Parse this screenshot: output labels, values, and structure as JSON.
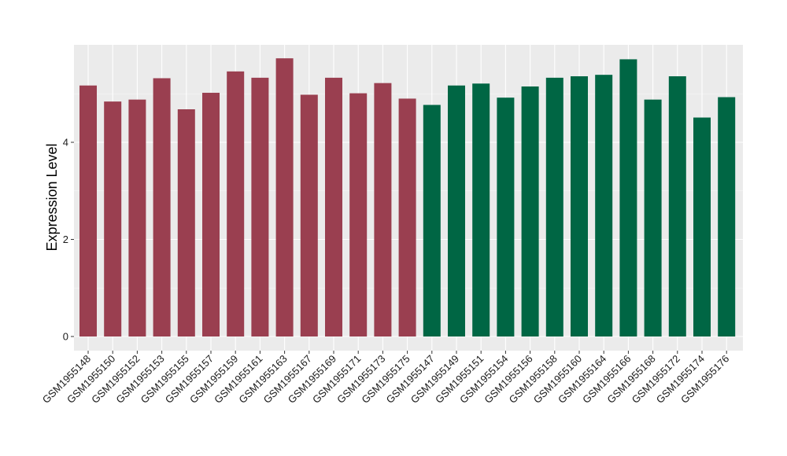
{
  "chart_data": {
    "type": "bar",
    "title": "",
    "xlabel": "",
    "ylabel": "Expression Level",
    "ylim": [
      0,
      6.0
    ],
    "yticks": [
      0,
      2,
      4
    ],
    "grid": true,
    "legend": "none",
    "colors": {
      "group1": "#9a3f50",
      "group2": "#006644",
      "panel_bg": "#ebebeb",
      "grid": "#ffffff"
    },
    "categories": [
      "GSM1955148",
      "GSM1955150",
      "GSM1955152",
      "GSM1955153",
      "GSM1955155",
      "GSM1955157",
      "GSM1955159",
      "GSM1955161",
      "GSM1955163",
      "GSM1955167",
      "GSM1955169",
      "GSM1955171",
      "GSM1955173",
      "GSM1955175",
      "GSM1955147",
      "GSM1955149",
      "GSM1955151",
      "GSM1955154",
      "GSM1955156",
      "GSM1955158",
      "GSM1955160",
      "GSM1955164",
      "GSM1955166",
      "GSM1955168",
      "GSM1955172",
      "GSM1955174",
      "GSM1955176"
    ],
    "values": [
      5.17,
      4.84,
      4.88,
      5.32,
      4.68,
      5.02,
      5.46,
      5.33,
      5.73,
      4.98,
      5.33,
      5.01,
      5.22,
      4.9,
      4.77,
      5.17,
      5.21,
      4.92,
      5.15,
      5.33,
      5.36,
      5.39,
      5.71,
      4.88,
      5.36,
      4.51,
      4.93
    ],
    "groups": [
      1,
      1,
      1,
      1,
      1,
      1,
      1,
      1,
      1,
      1,
      1,
      1,
      1,
      1,
      2,
      2,
      2,
      2,
      2,
      2,
      2,
      2,
      2,
      2,
      2,
      2,
      2
    ]
  }
}
